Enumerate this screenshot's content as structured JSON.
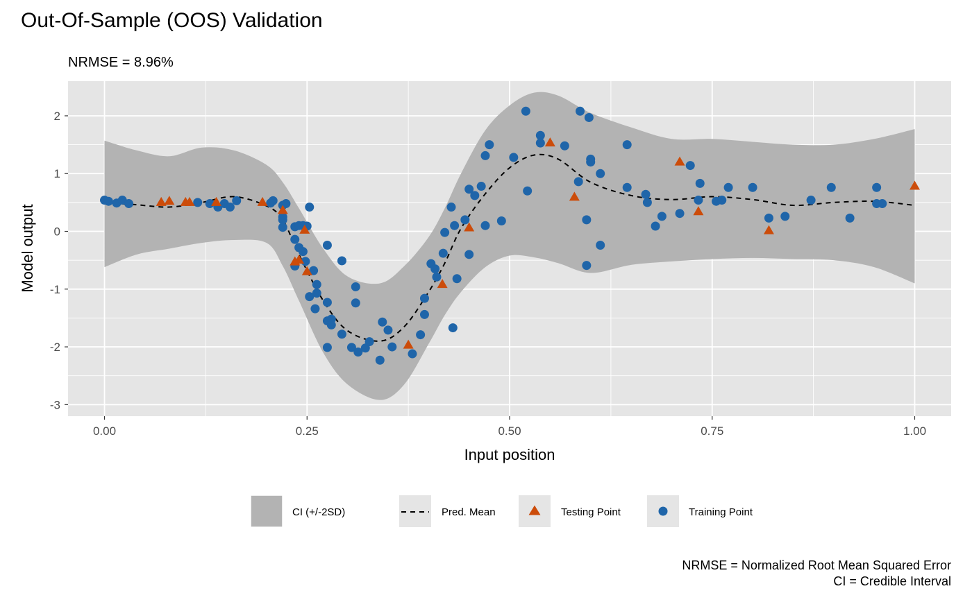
{
  "chart_data": {
    "type": "scatter",
    "title": "Out-Of-Sample (OOS) Validation",
    "subtitle": "NRMSE = 8.96%",
    "xlabel": "Input position",
    "ylabel": "Model output",
    "xlim": [
      -0.045,
      1.045
    ],
    "ylim": [
      -3.2,
      2.6
    ],
    "xticks": [
      0.0,
      0.25,
      0.5,
      0.75,
      1.0
    ],
    "xtick_labels": [
      "0.00",
      "0.25",
      "0.50",
      "0.75",
      "1.00"
    ],
    "yticks": [
      -3,
      -2,
      -1,
      0,
      1,
      2
    ],
    "ytick_labels": [
      "-3",
      "-2",
      "-1",
      "0",
      "1",
      "2"
    ],
    "grid": true,
    "legend_position": "bottom",
    "legend": {
      "ci": "CI (+/-2SD)",
      "mean": "Pred. Mean",
      "testing": "Testing Point",
      "training": "Training Point"
    },
    "caption_lines": [
      "NRMSE = Normalized Root Mean Squared Error",
      "CI = Credible Interval"
    ],
    "colors": {
      "panel": "#e5e5e5",
      "grid": "#ffffff",
      "ribbon": "#b3b3b3",
      "mean_line": "#000000",
      "testing": "#cc4c0a",
      "training": "#1f65a9",
      "legend_key_bg": "#e5e5e5"
    },
    "curve": {
      "x": [
        0.0,
        0.04,
        0.08,
        0.12,
        0.16,
        0.2,
        0.22,
        0.24,
        0.27,
        0.3,
        0.34,
        0.37,
        0.4,
        0.42,
        0.44,
        0.47,
        0.5,
        0.53,
        0.56,
        0.6,
        0.65,
        0.7,
        0.75,
        0.8,
        0.85,
        0.9,
        0.95,
        1.0
      ],
      "mean": [
        0.5,
        0.46,
        0.42,
        0.5,
        0.6,
        0.44,
        0.2,
        -0.4,
        -1.2,
        -1.72,
        -1.9,
        -1.65,
        -1.05,
        -0.55,
        0.05,
        0.65,
        1.1,
        1.32,
        1.25,
        0.85,
        0.62,
        0.55,
        0.6,
        0.55,
        0.45,
        0.5,
        0.52,
        0.45
      ],
      "lower": [
        -0.62,
        -0.4,
        -0.3,
        -0.2,
        -0.15,
        -0.2,
        -0.6,
        -1.2,
        -2.1,
        -2.65,
        -2.92,
        -2.65,
        -1.95,
        -1.45,
        -1.05,
        -0.62,
        -0.42,
        -0.45,
        -0.55,
        -0.72,
        -0.58,
        -0.52,
        -0.48,
        -0.46,
        -0.48,
        -0.5,
        -0.62,
        -0.9
      ],
      "upper": [
        1.57,
        1.4,
        1.3,
        1.45,
        1.4,
        1.15,
        0.85,
        0.4,
        -0.3,
        -0.78,
        -0.9,
        -0.6,
        -0.1,
        0.4,
        1.0,
        1.75,
        2.18,
        2.4,
        2.35,
        2.05,
        1.8,
        1.6,
        1.6,
        1.55,
        1.5,
        1.5,
        1.6,
        1.77
      ]
    },
    "training_points": [
      {
        "x": 0.0,
        "y": 0.54
      },
      {
        "x": 0.005,
        "y": 0.52
      },
      {
        "x": 0.015,
        "y": 0.49
      },
      {
        "x": 0.022,
        "y": 0.54
      },
      {
        "x": 0.03,
        "y": 0.48
      },
      {
        "x": 0.115,
        "y": 0.5
      },
      {
        "x": 0.13,
        "y": 0.48
      },
      {
        "x": 0.14,
        "y": 0.42
      },
      {
        "x": 0.148,
        "y": 0.48
      },
      {
        "x": 0.155,
        "y": 0.42
      },
      {
        "x": 0.163,
        "y": 0.53
      },
      {
        "x": 0.205,
        "y": 0.49
      },
      {
        "x": 0.208,
        "y": 0.53
      },
      {
        "x": 0.22,
        "y": 0.45
      },
      {
        "x": 0.224,
        "y": 0.48
      },
      {
        "x": 0.22,
        "y": 0.25
      },
      {
        "x": 0.22,
        "y": 0.2
      },
      {
        "x": 0.22,
        "y": 0.07
      },
      {
        "x": 0.235,
        "y": 0.08
      },
      {
        "x": 0.24,
        "y": 0.1
      },
      {
        "x": 0.245,
        "y": 0.1
      },
      {
        "x": 0.25,
        "y": 0.09
      },
      {
        "x": 0.253,
        "y": 0.42
      },
      {
        "x": 0.235,
        "y": -0.14
      },
      {
        "x": 0.24,
        "y": -0.28
      },
      {
        "x": 0.245,
        "y": -0.35
      },
      {
        "x": 0.248,
        "y": -0.52
      },
      {
        "x": 0.235,
        "y": -0.6
      },
      {
        "x": 0.258,
        "y": -0.68
      },
      {
        "x": 0.262,
        "y": -0.92
      },
      {
        "x": 0.262,
        "y": -1.07
      },
      {
        "x": 0.253,
        "y": -1.13
      },
      {
        "x": 0.26,
        "y": -1.34
      },
      {
        "x": 0.275,
        "y": -1.23
      },
      {
        "x": 0.275,
        "y": -1.55
      },
      {
        "x": 0.28,
        "y": -1.52
      },
      {
        "x": 0.28,
        "y": -1.62
      },
      {
        "x": 0.275,
        "y": -2.01
      },
      {
        "x": 0.275,
        "y": -0.24
      },
      {
        "x": 0.293,
        "y": -0.51
      },
      {
        "x": 0.293,
        "y": -1.78
      },
      {
        "x": 0.305,
        "y": -2.01
      },
      {
        "x": 0.31,
        "y": -0.96
      },
      {
        "x": 0.31,
        "y": -1.24
      },
      {
        "x": 0.313,
        "y": -2.09
      },
      {
        "x": 0.322,
        "y": -2.02
      },
      {
        "x": 0.327,
        "y": -1.91
      },
      {
        "x": 0.34,
        "y": -2.23
      },
      {
        "x": 0.343,
        "y": -1.57
      },
      {
        "x": 0.35,
        "y": -1.71
      },
      {
        "x": 0.355,
        "y": -2.0
      },
      {
        "x": 0.38,
        "y": -2.12
      },
      {
        "x": 0.39,
        "y": -1.79
      },
      {
        "x": 0.395,
        "y": -1.44
      },
      {
        "x": 0.395,
        "y": -1.16
      },
      {
        "x": 0.403,
        "y": -0.56
      },
      {
        "x": 0.408,
        "y": -0.65
      },
      {
        "x": 0.41,
        "y": -0.79
      },
      {
        "x": 0.418,
        "y": -0.38
      },
      {
        "x": 0.42,
        "y": -0.02
      },
      {
        "x": 0.428,
        "y": 0.42
      },
      {
        "x": 0.432,
        "y": 0.1
      },
      {
        "x": 0.43,
        "y": -1.67
      },
      {
        "x": 0.435,
        "y": -0.82
      },
      {
        "x": 0.445,
        "y": 0.2
      },
      {
        "x": 0.45,
        "y": 0.73
      },
      {
        "x": 0.45,
        "y": -0.4
      },
      {
        "x": 0.457,
        "y": 0.62
      },
      {
        "x": 0.465,
        "y": 0.78
      },
      {
        "x": 0.47,
        "y": 1.31
      },
      {
        "x": 0.47,
        "y": 0.1
      },
      {
        "x": 0.475,
        "y": 1.5
      },
      {
        "x": 0.49,
        "y": 0.18
      },
      {
        "x": 0.505,
        "y": 1.28
      },
      {
        "x": 0.52,
        "y": 2.08
      },
      {
        "x": 0.522,
        "y": 0.7
      },
      {
        "x": 0.538,
        "y": 1.66
      },
      {
        "x": 0.538,
        "y": 1.53
      },
      {
        "x": 0.568,
        "y": 1.48
      },
      {
        "x": 0.585,
        "y": 0.86
      },
      {
        "x": 0.587,
        "y": 2.08
      },
      {
        "x": 0.598,
        "y": 1.97
      },
      {
        "x": 0.6,
        "y": 1.25
      },
      {
        "x": 0.6,
        "y": 1.2
      },
      {
        "x": 0.595,
        "y": 0.2
      },
      {
        "x": 0.595,
        "y": -0.59
      },
      {
        "x": 0.612,
        "y": 1.0
      },
      {
        "x": 0.612,
        "y": -0.24
      },
      {
        "x": 0.645,
        "y": 1.5
      },
      {
        "x": 0.645,
        "y": 0.76
      },
      {
        "x": 0.668,
        "y": 0.64
      },
      {
        "x": 0.67,
        "y": 0.5
      },
      {
        "x": 0.68,
        "y": 0.09
      },
      {
        "x": 0.688,
        "y": 0.26
      },
      {
        "x": 0.71,
        "y": 0.31
      },
      {
        "x": 0.723,
        "y": 1.14
      },
      {
        "x": 0.733,
        "y": 0.54
      },
      {
        "x": 0.735,
        "y": 0.83
      },
      {
        "x": 0.755,
        "y": 0.52
      },
      {
        "x": 0.762,
        "y": 0.54
      },
      {
        "x": 0.77,
        "y": 0.76
      },
      {
        "x": 0.8,
        "y": 0.76
      },
      {
        "x": 0.82,
        "y": 0.23
      },
      {
        "x": 0.84,
        "y": 0.26
      },
      {
        "x": 0.872,
        "y": 0.54
      },
      {
        "x": 0.897,
        "y": 0.76
      },
      {
        "x": 0.92,
        "y": 0.23
      },
      {
        "x": 0.953,
        "y": 0.76
      },
      {
        "x": 0.953,
        "y": 0.48
      },
      {
        "x": 0.96,
        "y": 0.48
      }
    ],
    "testing_points": [
      {
        "x": 0.07,
        "y": 0.5
      },
      {
        "x": 0.08,
        "y": 0.52
      },
      {
        "x": 0.1,
        "y": 0.5
      },
      {
        "x": 0.105,
        "y": 0.5
      },
      {
        "x": 0.138,
        "y": 0.5
      },
      {
        "x": 0.195,
        "y": 0.5
      },
      {
        "x": 0.22,
        "y": 0.36
      },
      {
        "x": 0.24,
        "y": -0.5
      },
      {
        "x": 0.235,
        "y": -0.53
      },
      {
        "x": 0.247,
        "y": 0.02
      },
      {
        "x": 0.25,
        "y": -0.7
      },
      {
        "x": 0.375,
        "y": -1.97
      },
      {
        "x": 0.417,
        "y": -0.92
      },
      {
        "x": 0.45,
        "y": 0.06
      },
      {
        "x": 0.55,
        "y": 1.53
      },
      {
        "x": 0.58,
        "y": 0.59
      },
      {
        "x": 0.71,
        "y": 1.2
      },
      {
        "x": 0.733,
        "y": 0.34
      },
      {
        "x": 0.82,
        "y": 0.01
      },
      {
        "x": 1.0,
        "y": 0.78
      }
    ]
  }
}
